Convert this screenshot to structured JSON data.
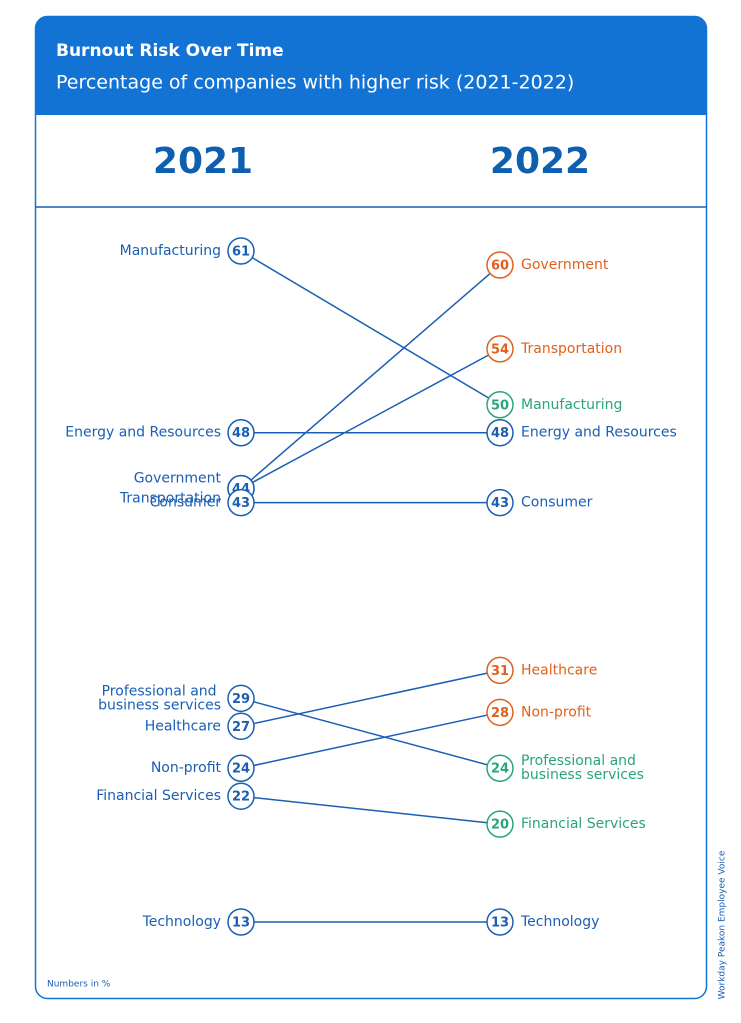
{
  "chart_data": {
    "type": "slope",
    "title": "Burnout Risk Over Time",
    "subtitle": "Percentage of companies with higher risk (2021-2022)",
    "note": "Numbers in %",
    "source": "Workday Peakon Employee Voice",
    "categories": [
      "Manufacturing",
      "Energy and Resources",
      "Government",
      "Transportation",
      "Consumer",
      "Professional and business services",
      "Healthcare",
      "Non-profit",
      "Financial Services",
      "Technology"
    ],
    "series": [
      {
        "name": "2021",
        "values": [
          61,
          48,
          44,
          44,
          43,
          29,
          27,
          24,
          22,
          13
        ]
      },
      {
        "name": "2022",
        "values": [
          50,
          48,
          60,
          54,
          43,
          24,
          31,
          28,
          20,
          13
        ]
      }
    ],
    "colors": {
      "line": "#1a5fb4",
      "unchanged": "#1a5fb4",
      "increase": "#e0611d",
      "decrease": "#2aa57a"
    }
  }
}
